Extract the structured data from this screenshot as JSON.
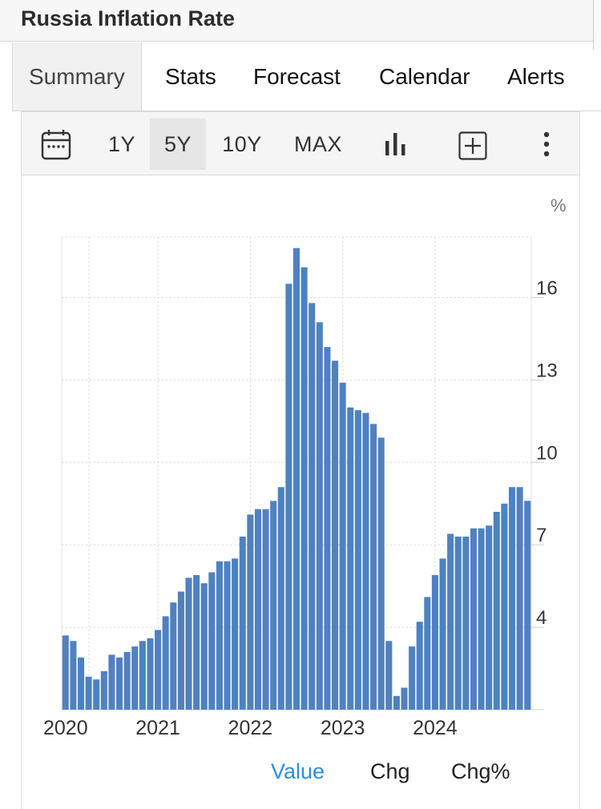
{
  "header": {
    "title": "Russia Inflation Rate"
  },
  "tabs": [
    {
      "label": "Summary",
      "active": true
    },
    {
      "label": "Stats",
      "active": false
    },
    {
      "label": "Forecast",
      "active": false
    },
    {
      "label": "Calendar",
      "active": false
    },
    {
      "label": "Alerts",
      "active": false
    }
  ],
  "toolbar": {
    "ranges": [
      "1Y",
      "5Y",
      "10Y",
      "MAX"
    ],
    "selected_range": "5Y",
    "icons": [
      "calendar-icon",
      "bar-chart-icon",
      "add-icon",
      "more-icon"
    ]
  },
  "legend_toggles": {
    "value": "Value",
    "chg": "Chg",
    "chg_pct": "Chg%",
    "active": "Value",
    "active_color": "#2a8fe0"
  },
  "chart_data": {
    "type": "bar",
    "title": "",
    "xlabel": "",
    "ylabel": "%",
    "ylim": [
      1,
      18.2
    ],
    "y_ticks": [
      4,
      7,
      10,
      13,
      16
    ],
    "x_tick_labels": [
      "2020",
      "2021",
      "2022",
      "2023",
      "2024"
    ],
    "grid": true,
    "bar_color": "#4f81c1",
    "series": [
      {
        "start": "2020-01",
        "frequency": "monthly",
        "values": [
          3.7,
          3.5,
          2.9,
          2.2,
          2.1,
          2.4,
          3.0,
          2.9,
          3.1,
          3.3,
          3.5,
          3.6,
          3.9,
          4.4,
          4.9,
          5.3,
          5.8,
          5.9,
          5.6,
          6.0,
          6.4,
          6.4,
          6.5,
          7.3,
          8.1,
          8.3,
          8.3,
          8.6,
          9.1,
          16.5,
          17.8,
          17.1,
          15.8,
          15.1,
          14.2,
          13.7,
          12.9,
          12.0,
          11.9,
          11.8,
          11.4,
          10.9,
          3.5,
          1.5,
          1.8,
          3.3,
          4.2,
          5.1,
          5.9,
          6.5,
          7.4,
          7.3,
          7.3,
          7.6,
          7.6,
          7.7,
          8.2,
          8.5,
          9.1,
          9.1,
          8.6
        ]
      }
    ]
  }
}
